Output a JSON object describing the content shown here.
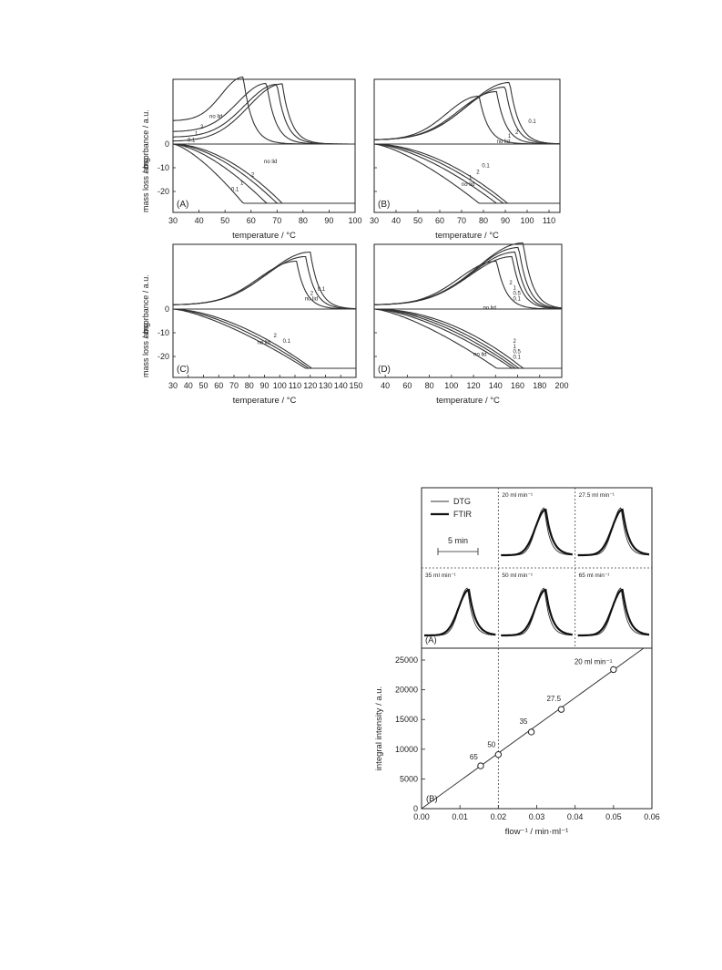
{
  "chart_data": [
    {
      "type": "line",
      "panel": "(A)",
      "ylabel_top": "absorbance / a.u.",
      "ylabel_bottom": "mass loss / mg",
      "xlabel": "temperature / °C",
      "xlim": [
        30,
        100
      ],
      "xticks": [
        "30",
        "40",
        "50",
        "60",
        "70",
        "80",
        "90",
        "100"
      ],
      "yticks": [
        "0",
        "-10",
        "-20"
      ],
      "ylim_mass": [
        -25,
        0
      ],
      "series_labels": [
        "no lid",
        "2",
        "1",
        "0.1"
      ],
      "absorbance_peaks": [
        {
          "label": "no lid",
          "peak_temperature": 57,
          "baseline": 0.17
        },
        {
          "label": "2",
          "peak_temperature": 66,
          "baseline": 0.09
        },
        {
          "label": "1",
          "peak_temperature": 70,
          "baseline": 0.05
        },
        {
          "label": "0.1",
          "peak_temperature": 72,
          "baseline": 0.02
        }
      ],
      "mass_end_temperature": [
        {
          "label": "no lid",
          "temperature": 57
        },
        {
          "label": "2",
          "temperature": 66
        },
        {
          "label": "1",
          "temperature": 70
        },
        {
          "label": "0.1",
          "temperature": 72
        }
      ]
    },
    {
      "type": "line",
      "panel": "(B)",
      "xlabel": "temperature / °C",
      "xlim": [
        30,
        115
      ],
      "xticks": [
        "30",
        "40",
        "50",
        "60",
        "70",
        "80",
        "90",
        "100",
        "110"
      ],
      "series_labels": [
        "0.1",
        "2",
        "1",
        "no lid"
      ],
      "absorbance_peaks": [
        {
          "label": "no lid",
          "peak_temperature": 78
        },
        {
          "label": "2",
          "peak_temperature": 86
        },
        {
          "label": "1",
          "peak_temperature": 90
        },
        {
          "label": "0.1",
          "peak_temperature": 92
        }
      ],
      "mass_end_temperature": [
        {
          "label": "no lid",
          "temperature": 78
        },
        {
          "label": "2",
          "temperature": 86
        },
        {
          "label": "1",
          "temperature": 89
        },
        {
          "label": "0.1",
          "temperature": 91
        }
      ]
    },
    {
      "type": "line",
      "panel": "(C)",
      "ylabel_top": "absorbance / a.u.",
      "ylabel_bottom": "mass loss / mg",
      "xlabel": "temperature / °C",
      "xlim": [
        30,
        150
      ],
      "xticks": [
        "30",
        "40",
        "50",
        "60",
        "70",
        "80",
        "90",
        "100",
        "110",
        "120",
        "130",
        "140",
        "150"
      ],
      "yticks": [
        "0",
        "-10",
        "-20"
      ],
      "series_labels": [
        "0.1",
        "2",
        "no lid"
      ],
      "absorbance_peaks": [
        {
          "label": "no lid",
          "peak_temperature": 111
        },
        {
          "label": "2",
          "peak_temperature": 117
        },
        {
          "label": "0.1",
          "peak_temperature": 120
        }
      ],
      "mass_end_temperature": [
        {
          "label": "no lid",
          "temperature": 117
        },
        {
          "label": "2",
          "temperature": 119
        },
        {
          "label": "0.1",
          "temperature": 121
        }
      ]
    },
    {
      "type": "line",
      "panel": "(D)",
      "xlabel": "temperature / °C",
      "xlim": [
        30,
        200
      ],
      "xticks": [
        "40",
        "60",
        "80",
        "100",
        "120",
        "140",
        "160",
        "180",
        "200"
      ],
      "series_labels": [
        "2",
        "1",
        "0.5",
        "0.1",
        "no lid"
      ],
      "absorbance_peaks": [
        {
          "label": "no lid",
          "peak_temperature": 141
        },
        {
          "label": "2",
          "peak_temperature": 155
        },
        {
          "label": "1",
          "peak_temperature": 158
        },
        {
          "label": "0.5",
          "peak_temperature": 161
        },
        {
          "label": "0.1",
          "peak_temperature": 165
        }
      ],
      "mass_end_temperature": [
        {
          "label": "no lid",
          "temperature": 141
        },
        {
          "label": "2",
          "temperature": 155
        },
        {
          "label": "1",
          "temperature": 158
        },
        {
          "label": "0.5",
          "temperature": 161
        },
        {
          "label": "0.1",
          "temperature": 165
        }
      ]
    },
    {
      "type": "line",
      "panel": "(A)",
      "legend": [
        "DTG",
        "FTIR"
      ],
      "scale_bar": "5 min",
      "flows": [
        "20 ml min⁻¹",
        "27.5 ml min⁻¹",
        "35 ml min⁻¹",
        "50 ml min⁻¹",
        "65 ml min⁻¹"
      ]
    },
    {
      "type": "scatter",
      "panel": "(B)",
      "xlabel": "flow⁻¹  /  min·ml⁻¹",
      "ylabel": "integral intensity  /  a.u.",
      "xlim": [
        0,
        0.06
      ],
      "ylim": [
        0,
        27000
      ],
      "xticks": [
        "0.00",
        "0.01",
        "0.02",
        "0.03",
        "0.04",
        "0.05",
        "0.06"
      ],
      "yticks": [
        "0",
        "5000",
        "10000",
        "15000",
        "20000",
        "25000"
      ],
      "points": [
        {
          "x": 0.0154,
          "y": 7200,
          "label": "65"
        },
        {
          "x": 0.02,
          "y": 9100,
          "label": "50"
        },
        {
          "x": 0.0286,
          "y": 12900,
          "label": "35"
        },
        {
          "x": 0.0364,
          "y": 16700,
          "label": "27.5"
        },
        {
          "x": 0.05,
          "y": 23400,
          "label": "20 ml min⁻¹"
        }
      ],
      "fit_line": {
        "x0": 0,
        "y0": 0,
        "x1": 0.06,
        "y1": 28000
      }
    }
  ]
}
